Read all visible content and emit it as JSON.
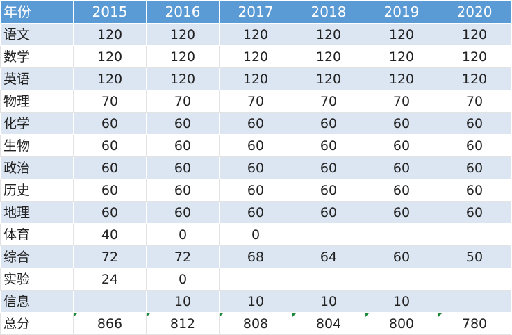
{
  "table": {
    "header": {
      "label": "年份",
      "years": [
        "2015",
        "2016",
        "2017",
        "2018",
        "2019",
        "2020"
      ]
    },
    "rows": [
      {
        "subject": "语文",
        "values": [
          "120",
          "120",
          "120",
          "120",
          "120",
          "120"
        ]
      },
      {
        "subject": "数学",
        "values": [
          "120",
          "120",
          "120",
          "120",
          "120",
          "120"
        ]
      },
      {
        "subject": "英语",
        "values": [
          "120",
          "120",
          "120",
          "120",
          "120",
          "120"
        ]
      },
      {
        "subject": "物理",
        "values": [
          "70",
          "70",
          "70",
          "70",
          "70",
          "70"
        ]
      },
      {
        "subject": "化学",
        "values": [
          "60",
          "60",
          "60",
          "60",
          "60",
          "60"
        ]
      },
      {
        "subject": "生物",
        "values": [
          "60",
          "60",
          "60",
          "60",
          "60",
          "60"
        ]
      },
      {
        "subject": "政治",
        "values": [
          "60",
          "60",
          "60",
          "60",
          "60",
          "60"
        ]
      },
      {
        "subject": "历史",
        "values": [
          "60",
          "60",
          "60",
          "60",
          "60",
          "60"
        ]
      },
      {
        "subject": "地理",
        "values": [
          "60",
          "60",
          "60",
          "60",
          "60",
          "60"
        ]
      },
      {
        "subject": "体育",
        "values": [
          "40",
          "0",
          "0",
          "",
          "",
          ""
        ]
      },
      {
        "subject": "综合",
        "values": [
          "72",
          "72",
          "68",
          "64",
          "60",
          "50"
        ]
      },
      {
        "subject": "实验",
        "values": [
          "24",
          "0",
          "",
          "",
          "",
          ""
        ]
      },
      {
        "subject": "信息",
        "values": [
          "",
          "10",
          "10",
          "10",
          "10",
          ""
        ]
      }
    ],
    "total": {
      "label": "总分",
      "values": [
        "866",
        "812",
        "808",
        "804",
        "800",
        "780"
      ]
    }
  },
  "colors": {
    "header_bg": "#5b9bd5",
    "band_bg": "#dce6f2",
    "warning_flag": "#1e8a3c"
  }
}
